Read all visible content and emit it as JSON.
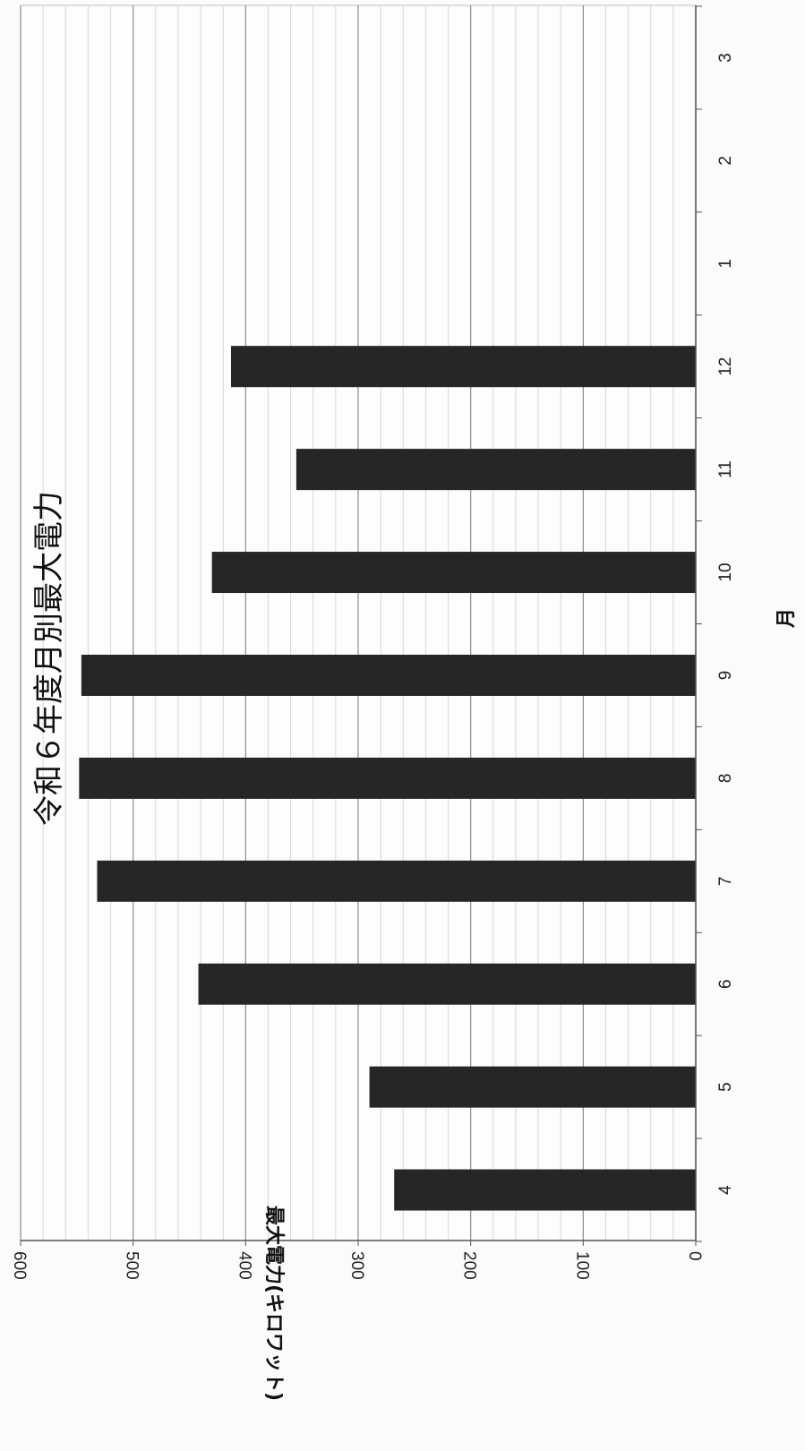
{
  "chart_data": {
    "type": "bar",
    "orientation": "horizontal",
    "title": "令和６年度月別最大電力",
    "xlabel": "月",
    "ylabel": "最大電力(キロワット)",
    "categories": [
      "4",
      "5",
      "6",
      "7",
      "8",
      "9",
      "10",
      "11",
      "12",
      "1",
      "2",
      "3"
    ],
    "values": [
      268,
      290,
      442,
      532,
      548,
      546,
      430,
      355,
      413,
      null,
      null,
      null
    ],
    "ylim": [
      0,
      600
    ],
    "yticks": [
      0,
      100,
      200,
      300,
      400,
      500,
      600
    ],
    "grid": true,
    "legend": "none",
    "colors": {
      "bar": "#262626",
      "grid_major": "#8c8c8c",
      "grid_minor": "#d6d6d6",
      "axis": "#555555",
      "background": "#fbfbfb"
    }
  }
}
